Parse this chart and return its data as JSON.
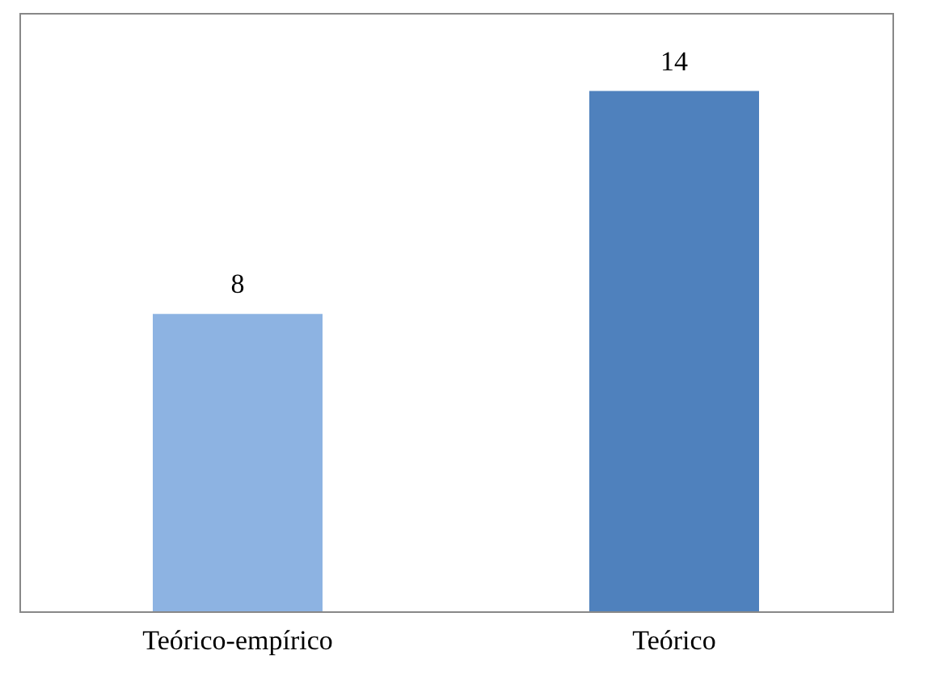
{
  "chart_data": {
    "type": "bar",
    "categories": [
      "Teórico-empírico",
      "Teórico"
    ],
    "values": [
      8,
      14
    ],
    "colors": [
      "#8db3e2",
      "#4f81bd"
    ],
    "data_labels": true,
    "grid": false
  }
}
